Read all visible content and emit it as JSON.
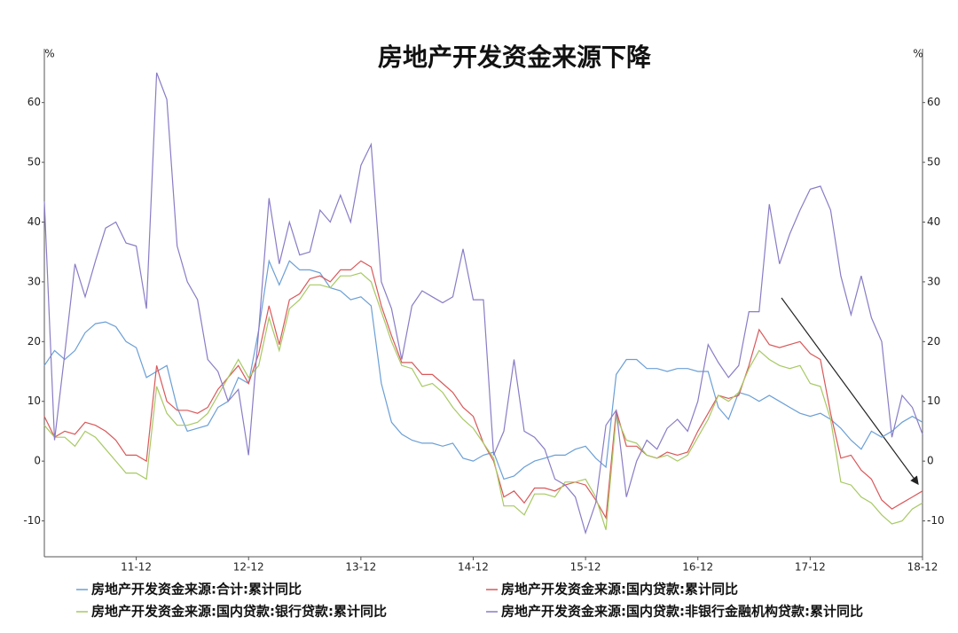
{
  "chart_data": {
    "type": "line",
    "title": "房地产开发资金来源下降",
    "y_label": "%",
    "y2_label": "%",
    "categories": [
      null,
      null,
      null,
      null,
      null,
      null,
      null,
      null,
      null,
      "11-12",
      null,
      null,
      null,
      null,
      null,
      null,
      null,
      null,
      null,
      null,
      "12-12",
      null,
      null,
      null,
      null,
      null,
      null,
      null,
      null,
      null,
      null,
      "13-12",
      null,
      null,
      null,
      null,
      null,
      null,
      null,
      null,
      null,
      null,
      "14-12",
      null,
      null,
      null,
      null,
      null,
      null,
      null,
      null,
      null,
      null,
      "15-12",
      null,
      null,
      null,
      null,
      null,
      null,
      null,
      null,
      null,
      null,
      "16-12",
      null,
      null,
      null,
      null,
      null,
      null,
      null,
      null,
      null,
      null,
      "17-12",
      null,
      null,
      null,
      null,
      null,
      null,
      null,
      null,
      null,
      null,
      "18-12"
    ],
    "series": [
      {
        "name": "房地产开发资金来源:合计:累计同比",
        "color": "#6b9fd6",
        "values": [
          16,
          18.5,
          17,
          18.5,
          21.5,
          23,
          23.3,
          22.5,
          20,
          19,
          14,
          15,
          16,
          9,
          5,
          5.5,
          6,
          9,
          10,
          14,
          13,
          22,
          33.5,
          29.5,
          33.5,
          32,
          32,
          31.5,
          29,
          28.5,
          27,
          27.5,
          26,
          13,
          6.5,
          4.5,
          3.5,
          3,
          3,
          2.5,
          3,
          0.5,
          0,
          1,
          1.5,
          -3,
          -2.5,
          -1,
          0,
          0.5,
          1,
          1,
          2,
          2.5,
          0.5,
          -1,
          14.5,
          17,
          17,
          15.5,
          15.5,
          15,
          15.5,
          15.5,
          15,
          15,
          9,
          7,
          11.5,
          11,
          10,
          11,
          10,
          9,
          8,
          7.5,
          8,
          7,
          5.5,
          3.5,
          2,
          5,
          4,
          5,
          6.5,
          7.5,
          6.5
        ]
      },
      {
        "name": "房地产开发资金来源:国内贷款:累计同比",
        "color": "#d9585a",
        "values": [
          7.5,
          4,
          5,
          4.5,
          6.5,
          6,
          5,
          3.5,
          1,
          1,
          0,
          16,
          10,
          8.5,
          8.5,
          8,
          9,
          12,
          14,
          16,
          13,
          18,
          26,
          19.5,
          27,
          28,
          30.5,
          31,
          30,
          32,
          32,
          33.5,
          32.5,
          26,
          21,
          16.5,
          16.5,
          14.5,
          14.5,
          13,
          11.5,
          9,
          7.5,
          3,
          0,
          -6,
          -5,
          -7,
          -4.5,
          -4.5,
          -5,
          -4,
          -3.5,
          -4,
          -6.5,
          -9.5,
          8.5,
          2.5,
          2.5,
          1,
          0.5,
          1.5,
          1,
          1.5,
          5,
          8,
          11,
          10.5,
          11,
          16,
          22,
          19.5,
          19,
          19.5,
          20,
          18,
          17,
          8,
          0.5,
          1,
          -1.5,
          -3,
          -6.5,
          -8,
          -7,
          -6,
          -5
        ]
      },
      {
        "name": "房地产开发资金来源:国内贷款:银行贷款:累计同比",
        "color": "#a7c963",
        "values": [
          6,
          4,
          4,
          2.5,
          5,
          4,
          2,
          0,
          -2,
          -2,
          -3,
          12.5,
          8,
          6,
          6,
          6.5,
          8,
          11,
          14,
          17,
          14,
          16,
          24,
          18.5,
          25.5,
          27,
          29.5,
          29.5,
          29,
          31,
          31,
          31.5,
          30,
          25,
          20,
          16,
          15.5,
          12.5,
          13,
          11.5,
          9,
          7,
          5.5,
          3,
          0.5,
          -7.5,
          -7.5,
          -9,
          -5.5,
          -5.5,
          -6,
          -3.5,
          -3.5,
          -3,
          -6,
          -11.5,
          7.5,
          3.5,
          3,
          1,
          0.5,
          1,
          0,
          1,
          4,
          7,
          11,
          10,
          11.5,
          15.5,
          18.5,
          17,
          16,
          15.5,
          16,
          13,
          12.5,
          7,
          -3.5,
          -4,
          -6,
          -7,
          -9,
          -10.5,
          -10,
          -8,
          -7
        ]
      },
      {
        "name": "房地产开发资金来源:国内贷款:非银行金融机构贷款:累计同比",
        "color": "#8a7cc6",
        "values": [
          43.5,
          3.5,
          18,
          33,
          27.5,
          33.5,
          39,
          40,
          36.5,
          36,
          25.5,
          65,
          60.5,
          36,
          30,
          27,
          17,
          15,
          10,
          12,
          1,
          22,
          44,
          33,
          40,
          34.5,
          35,
          42,
          40,
          44.5,
          40,
          49.5,
          53,
          30,
          25.5,
          17,
          26,
          28.5,
          27.5,
          26.5,
          27.5,
          35.5,
          27,
          27,
          1,
          5,
          17,
          5,
          4,
          2,
          -3,
          -4,
          -6,
          -12,
          -7,
          6,
          8.5,
          -6,
          0,
          3.5,
          2,
          5.5,
          7,
          5,
          10,
          19.5,
          16.5,
          14,
          16,
          25,
          25,
          43,
          33,
          38,
          42,
          45.5,
          46,
          42,
          31,
          24.5,
          31,
          24,
          20,
          4,
          11,
          9,
          4.5
        ]
      }
    ],
    "ylim": [
      -16,
      69
    ],
    "yticks": [
      -10,
      0,
      10,
      20,
      30,
      40,
      50,
      60
    ],
    "y2lim": [
      -16,
      69
    ],
    "y2ticks": [
      -10,
      0,
      10,
      20,
      30,
      40,
      50,
      60
    ],
    "grid": false
  }
}
